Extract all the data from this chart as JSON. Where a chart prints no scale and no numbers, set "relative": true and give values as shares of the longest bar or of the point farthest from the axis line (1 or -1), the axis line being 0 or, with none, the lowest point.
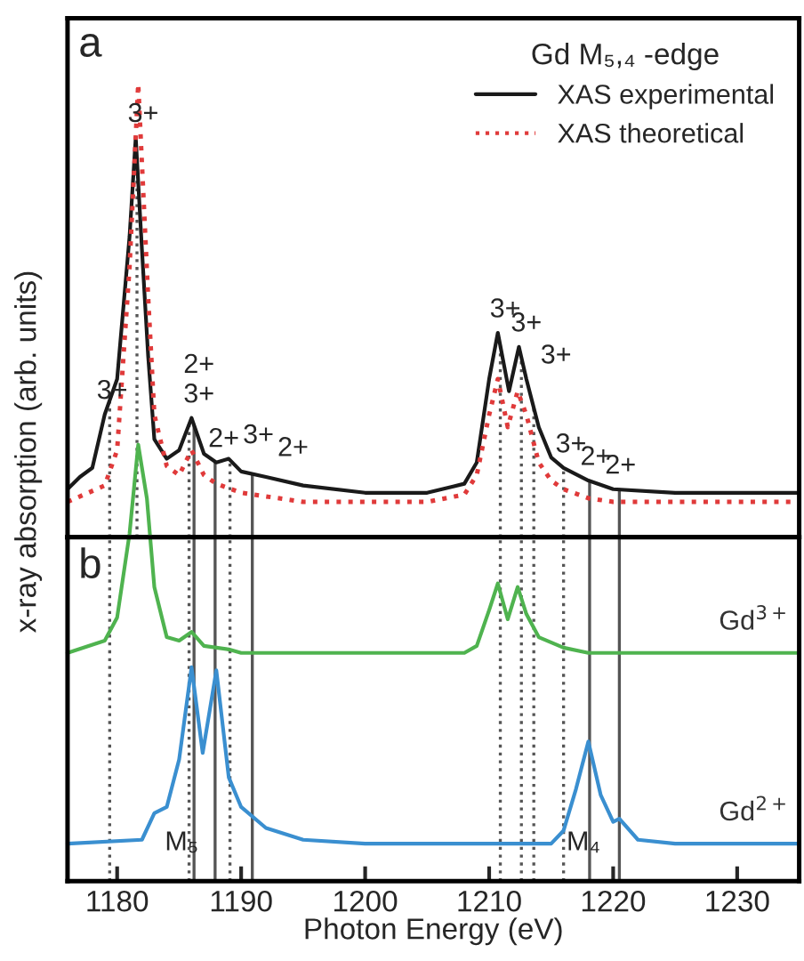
{
  "chart_data": [
    {
      "type": "line",
      "title": "a",
      "relative": true,
      "xlim": [
        1176,
        1235
      ],
      "tick_labels": false,
      "grid": false,
      "legend": "top right",
      "legend_title": "Gd M₅,₄ -edge",
      "ylabel": "x-ray absorption (arb. units)",
      "series": [
        {
          "name": "XAS experimental",
          "color": "#1a1a1a",
          "line_style": "solid",
          "x": [
            1176,
            1177,
            1178,
            1179,
            1180,
            1181,
            1181.5,
            1182,
            1182.5,
            1183,
            1184,
            1185,
            1186,
            1187,
            1188,
            1189,
            1190,
            1192,
            1195,
            1200,
            1205,
            1208,
            1209,
            1210,
            1210.7,
            1211.6,
            1212.4,
            1213,
            1214,
            1215,
            1216,
            1218,
            1220,
            1225,
            1230,
            1235
          ],
          "values": [
            0.106,
            0.133,
            0.153,
            0.271,
            0.349,
            0.663,
            0.882,
            0.635,
            0.4,
            0.216,
            0.173,
            0.192,
            0.263,
            0.184,
            0.165,
            0.173,
            0.145,
            0.133,
            0.114,
            0.098,
            0.098,
            0.118,
            0.165,
            0.349,
            0.451,
            0.322,
            0.42,
            0.349,
            0.243,
            0.176,
            0.153,
            0.125,
            0.106,
            0.098,
            0.098,
            0.098
          ]
        },
        {
          "name": "XAS theoretical",
          "color": "#e03a3a",
          "line_style": "dotted",
          "x": [
            1176,
            1179,
            1180,
            1181,
            1181.7,
            1182.5,
            1183,
            1184,
            1185,
            1186,
            1187,
            1188,
            1190,
            1195,
            1205,
            1208,
            1209,
            1210,
            1210.7,
            1211.5,
            1212.3,
            1213,
            1214,
            1215,
            1216,
            1218,
            1220,
            1235
          ],
          "values": [
            0.078,
            0.114,
            0.192,
            0.596,
            1.0,
            0.53,
            0.27,
            0.157,
            0.137,
            0.192,
            0.137,
            0.118,
            0.098,
            0.078,
            0.078,
            0.094,
            0.137,
            0.27,
            0.349,
            0.243,
            0.322,
            0.27,
            0.165,
            0.125,
            0.106,
            0.086,
            0.078,
            0.078
          ]
        }
      ],
      "ref_lines": [
        {
          "axis": "x",
          "value": 1179.4,
          "color": "#555555",
          "line_style": "dotted"
        },
        {
          "axis": "x",
          "value": 1181.6,
          "color": "#555555",
          "line_style": "dotted"
        },
        {
          "axis": "x",
          "value": 1185.8,
          "color": "#555555",
          "line_style": "dotted"
        },
        {
          "axis": "x",
          "value": 1186.2,
          "color": "#555555",
          "line_style": "solid"
        },
        {
          "axis": "x",
          "value": 1187.9,
          "color": "#555555",
          "line_style": "solid"
        },
        {
          "axis": "x",
          "value": 1189.1,
          "color": "#555555",
          "line_style": "dotted"
        },
        {
          "axis": "x",
          "value": 1190.9,
          "color": "#555555",
          "line_style": "solid"
        },
        {
          "axis": "x",
          "value": 1210.9,
          "color": "#555555",
          "line_style": "dotted"
        },
        {
          "axis": "x",
          "value": 1212.6,
          "color": "#555555",
          "line_style": "dotted"
        },
        {
          "axis": "x",
          "value": 1213.6,
          "color": "#555555",
          "line_style": "dotted"
        },
        {
          "axis": "x",
          "value": 1216.0,
          "color": "#555555",
          "line_style": "dotted"
        },
        {
          "axis": "x",
          "value": 1218.1,
          "color": "#555555",
          "line_style": "solid"
        },
        {
          "axis": "x",
          "value": 1220.5,
          "color": "#555555",
          "line_style": "solid"
        }
      ],
      "annotations": [
        {
          "text": "3+",
          "x": 1179,
          "y": 0.271
        },
        {
          "text": "3+",
          "x": 1181.5,
          "y": 0.882
        },
        {
          "text": "3+",
          "x": 1186,
          "y": 0.263
        },
        {
          "text": "2+",
          "x": 1186,
          "y": 0.263
        },
        {
          "text": "2+",
          "x": 1188,
          "y": 0.165
        },
        {
          "text": "3+",
          "x": 1189,
          "y": 0.173
        },
        {
          "text": "2+",
          "x": 1190,
          "y": 0.145
        },
        {
          "text": "3+",
          "x": 1210.7,
          "y": 0.451
        },
        {
          "text": "3+",
          "x": 1212.4,
          "y": 0.42
        },
        {
          "text": "3+",
          "x": 1213,
          "y": 0.349
        },
        {
          "text": "3+",
          "x": 1216,
          "y": 0.153
        },
        {
          "text": "2+",
          "x": 1218,
          "y": 0.125
        },
        {
          "text": "2+",
          "x": 1220,
          "y": 0.106
        }
      ]
    },
    {
      "type": "line",
      "title": "b",
      "relative": true,
      "xlim": [
        1176,
        1235
      ],
      "xticks": [
        1180,
        1190,
        1200,
        1210,
        1220,
        1230
      ],
      "tick_labels": "x",
      "grid": false,
      "xlabel": "Photon Energy (eV)",
      "series": [
        {
          "name": "Gd$^{3+}$",
          "color": "#4fb34f",
          "line_style": "solid",
          "x": [
            1176,
            1179,
            1180,
            1181,
            1181.7,
            1182.4,
            1183,
            1184,
            1185,
            1186,
            1187,
            1189,
            1190,
            1208,
            1209,
            1210,
            1210.7,
            1211.5,
            1212.3,
            1213,
            1214,
            1216,
            1218,
            1235
          ],
          "values": [
            0.523,
            0.551,
            0.604,
            0.796,
            1.0,
            0.877,
            0.674,
            0.559,
            0.551,
            0.571,
            0.539,
            0.531,
            0.523,
            0.523,
            0.539,
            0.621,
            0.682,
            0.6,
            0.674,
            0.612,
            0.559,
            0.535,
            0.523,
            0.523
          ]
        },
        {
          "name": "Gd$^{2+}$",
          "color": "#3a8fd0",
          "line_style": "solid",
          "x": [
            1176,
            1182,
            1183,
            1184,
            1185,
            1186,
            1186.9,
            1188,
            1189,
            1190,
            1192,
            1195,
            1200,
            1215,
            1216,
            1217,
            1218,
            1219,
            1220,
            1220.5,
            1222,
            1225,
            1235
          ],
          "values": [
            0.086,
            0.095,
            0.156,
            0.17,
            0.279,
            0.49,
            0.294,
            0.483,
            0.238,
            0.17,
            0.122,
            0.095,
            0.086,
            0.086,
            0.116,
            0.211,
            0.32,
            0.197,
            0.136,
            0.143,
            0.095,
            0.086,
            0.086
          ]
        }
      ],
      "ref_lines": [
        {
          "axis": "x",
          "value": 1179.4,
          "color": "#555555",
          "line_style": "dotted"
        },
        {
          "axis": "x",
          "value": 1185.8,
          "color": "#555555",
          "line_style": "dotted"
        },
        {
          "axis": "x",
          "value": 1186.2,
          "color": "#555555",
          "line_style": "solid"
        },
        {
          "axis": "x",
          "value": 1187.9,
          "color": "#555555",
          "line_style": "solid"
        },
        {
          "axis": "x",
          "value": 1189.1,
          "color": "#555555",
          "line_style": "dotted"
        },
        {
          "axis": "x",
          "value": 1190.9,
          "color": "#555555",
          "line_style": "solid"
        },
        {
          "axis": "x",
          "value": 1210.9,
          "color": "#555555",
          "line_style": "dotted"
        },
        {
          "axis": "x",
          "value": 1212.6,
          "color": "#555555",
          "line_style": "dotted"
        },
        {
          "axis": "x",
          "value": 1213.6,
          "color": "#555555",
          "line_style": "dotted"
        },
        {
          "axis": "x",
          "value": 1216.0,
          "color": "#555555",
          "line_style": "dotted"
        },
        {
          "axis": "x",
          "value": 1218.1,
          "color": "#555555",
          "line_style": "solid"
        },
        {
          "axis": "x",
          "value": 1220.5,
          "color": "#555555",
          "line_style": "solid"
        }
      ],
      "annotations": [
        {
          "text": "M₅",
          "x": 1185.2,
          "y": 0.058
        },
        {
          "text": "M₄",
          "x": 1217.6,
          "y": 0.058
        }
      ]
    }
  ]
}
